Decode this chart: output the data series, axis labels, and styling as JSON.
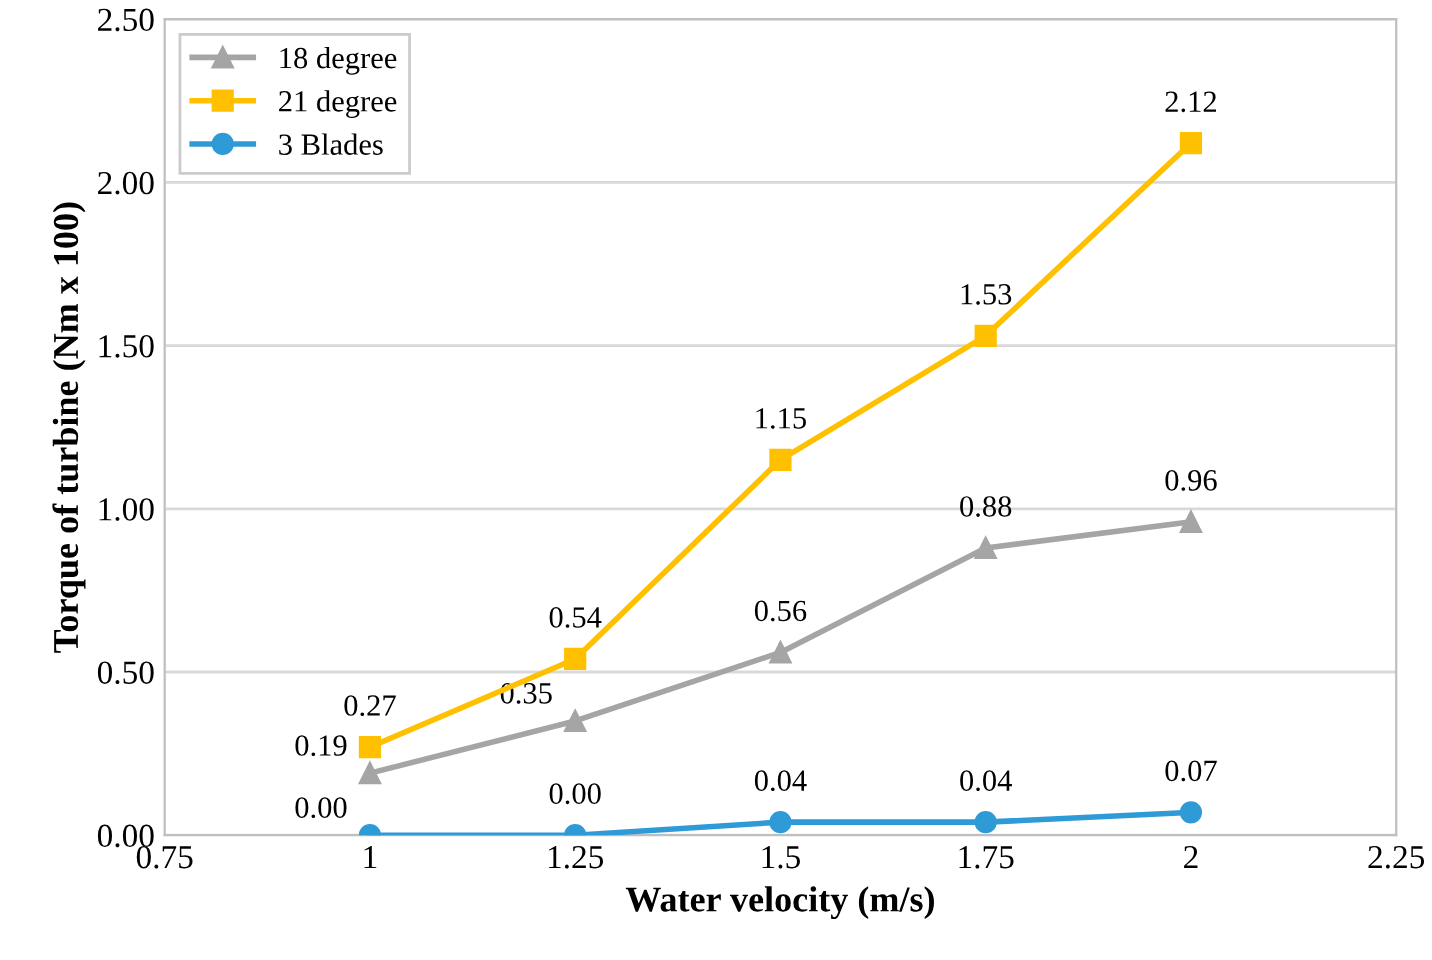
{
  "chart_data": {
    "type": "line",
    "xlabel": "Water velocity (m/s)",
    "ylabel": "Torque of turbine (Nm x 100)",
    "x": [
      1,
      1.25,
      1.5,
      1.75,
      2
    ],
    "series": [
      {
        "name": "18 degree",
        "color": "#a5a5a5",
        "marker": "triangle",
        "values": [
          0.19,
          0.35,
          0.56,
          0.88,
          0.96
        ],
        "value_labels": [
          "0.19",
          "0.35",
          "0.56",
          "0.88",
          "0.96"
        ]
      },
      {
        "name": "21 degree",
        "color": "#ffc000",
        "marker": "square",
        "values": [
          0.27,
          0.54,
          1.15,
          1.53,
          2.12
        ],
        "value_labels": [
          "0.27",
          "0.54",
          "1.15",
          "1.53",
          "2.12"
        ]
      },
      {
        "name": "3 Blades",
        "color": "#2e9ad6",
        "marker": "circle",
        "values": [
          0.0,
          0.0,
          0.04,
          0.04,
          0.07
        ],
        "value_labels": [
          "0.00",
          "0.00",
          "0.04",
          "0.04",
          "0.07"
        ]
      }
    ],
    "xlim": [
      0.75,
      2.25
    ],
    "xticks": [
      0.75,
      1,
      1.25,
      1.5,
      1.75,
      2,
      2.25
    ],
    "ylim": [
      0,
      2.5
    ],
    "yticks": [
      {
        "value": 0,
        "label": "0.00"
      },
      {
        "value": 0.5,
        "label": "0.50"
      },
      {
        "value": 1,
        "label": "1.00"
      },
      {
        "value": 1.5,
        "label": "1.50"
      },
      {
        "value": 2,
        "label": "2.00"
      },
      {
        "value": 2.5,
        "label": "2.50"
      }
    ],
    "grid": "y",
    "legend": "top left",
    "line_style": "solid"
  }
}
